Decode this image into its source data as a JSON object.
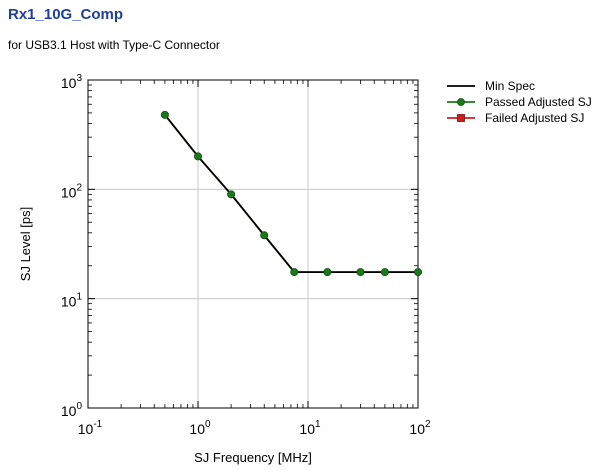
{
  "header": {
    "title": "Rx1_10G_Comp",
    "subtitle": "for USB3.1 Host with Type-C Connector"
  },
  "colors": {
    "title": "#1f3f9f",
    "min_spec": "#000000",
    "passed": "#1a7a1a",
    "failed": "#cc1f1f",
    "grid": "#c8c8c8"
  },
  "chart_data": {
    "type": "line",
    "xscale": "log",
    "yscale": "log",
    "xlim": [
      0.1,
      100
    ],
    "ylim": [
      1,
      1000
    ],
    "xlabel": "SJ Frequency [MHz]",
    "ylabel": "SJ Level  [ps]",
    "grid": true,
    "legend_position": "right",
    "x_ticks": [
      {
        "value": 0.1,
        "base": "10",
        "exp": "-1"
      },
      {
        "value": 1,
        "base": "10",
        "exp": "0"
      },
      {
        "value": 10,
        "base": "10",
        "exp": "1"
      },
      {
        "value": 100,
        "base": "10",
        "exp": "2"
      }
    ],
    "y_ticks": [
      {
        "value": 1,
        "base": "10",
        "exp": "0"
      },
      {
        "value": 10,
        "base": "10",
        "exp": "1"
      },
      {
        "value": 100,
        "base": "10",
        "exp": "2"
      },
      {
        "value": 1000,
        "base": "10",
        "exp": "3"
      }
    ],
    "series": [
      {
        "name": "Min Spec",
        "color": "#000000",
        "marker": "none",
        "points": [
          [
            0.5,
            480
          ],
          [
            1,
            200
          ],
          [
            2,
            90
          ],
          [
            4,
            38
          ],
          [
            7.5,
            17.5
          ],
          [
            100,
            17.5
          ]
        ]
      },
      {
        "name": "Passed Adjusted SJ",
        "color": "#1a7a1a",
        "marker": "circle",
        "points": [
          [
            0.5,
            480
          ],
          [
            1,
            200
          ],
          [
            2,
            90
          ],
          [
            4,
            38
          ],
          [
            7.5,
            17.5
          ],
          [
            15,
            17.5
          ],
          [
            30,
            17.5
          ],
          [
            50,
            17.5
          ],
          [
            100,
            17.5
          ]
        ]
      },
      {
        "name": "Failed Adjusted SJ",
        "color": "#cc1f1f",
        "marker": "square",
        "points": []
      }
    ]
  }
}
